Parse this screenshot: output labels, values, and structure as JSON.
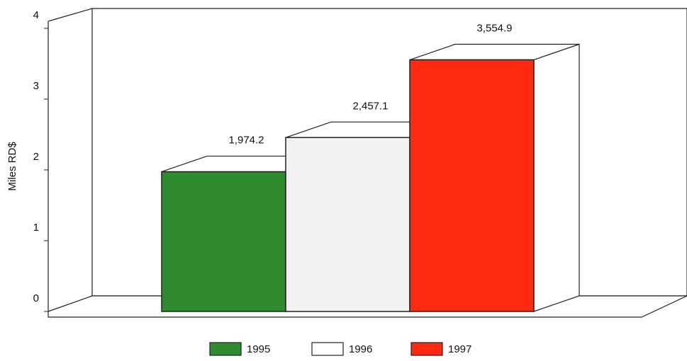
{
  "chart_data": {
    "type": "bar3d",
    "y_label": "Miles RD$",
    "categories": [
      null
    ],
    "series": [
      {
        "name": "1995",
        "color": "#2e8b2e",
        "values": [
          1.9742
        ],
        "value_labels": [
          "1,974.2"
        ]
      },
      {
        "name": "1996",
        "color": "#ffffff",
        "values": [
          2.4571
        ],
        "value_labels": [
          "2,457.1"
        ]
      },
      {
        "name": "1997",
        "color": "#ff2a10",
        "values": [
          3.5549
        ],
        "value_labels": [
          "3,554.9"
        ]
      }
    ],
    "ylim": [
      0,
      4
    ],
    "yticks": [
      0,
      1,
      2,
      3,
      4
    ],
    "legend": "bottom"
  }
}
